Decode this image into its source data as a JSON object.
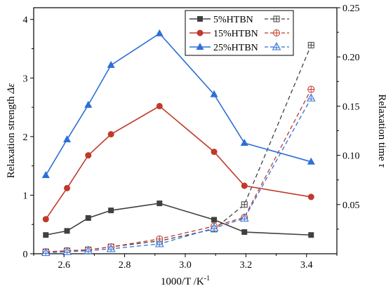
{
  "chart_data": {
    "type": "line",
    "xlabel": "1000/T /K",
    "xlabel_sup": "-1",
    "ylabel_left": "Relaxation strength",
    "ylabel_left_symbol": "Δε",
    "ylabel_right": "Relaxation time",
    "ylabel_right_symbol": "τ",
    "xlim": [
      2.5,
      3.5
    ],
    "ylim_left": [
      0,
      4.2
    ],
    "ylim_right": [
      0,
      0.25
    ],
    "x_ticks": [
      "2.6",
      "2.8",
      "3.0",
      "3.2",
      "3.4"
    ],
    "y_left_ticks": [
      "0",
      "1",
      "2",
      "3",
      "4"
    ],
    "y_right_ticks": [
      "0.05",
      "0.10",
      "0.15",
      "0.20",
      "0.25"
    ],
    "x": [
      2.54,
      2.61,
      2.68,
      2.755,
      2.915,
      3.095,
      3.195,
      3.415
    ],
    "legend_position": "top-right",
    "series": [
      {
        "name": "5%HTBN",
        "color": "#404040",
        "marker": "square",
        "strength": [
          0.32,
          0.39,
          0.61,
          0.74,
          0.86,
          0.58,
          0.37,
          0.32
        ],
        "time": [
          0.002,
          0.003,
          0.004,
          0.007,
          0.013,
          0.025,
          0.05,
          0.212
        ]
      },
      {
        "name": "15%HTBN",
        "color": "#c0392b",
        "marker": "circle",
        "strength": [
          0.59,
          1.12,
          1.68,
          2.04,
          2.52,
          1.74,
          1.16,
          0.97
        ],
        "time": [
          0.002,
          0.003,
          0.004,
          0.007,
          0.015,
          0.028,
          0.037,
          0.167
        ]
      },
      {
        "name": "25%HTBN",
        "color": "#2e6fd6",
        "marker": "triangle",
        "strength": [
          1.34,
          1.95,
          2.54,
          3.22,
          3.76,
          2.72,
          1.89,
          1.57
        ],
        "time": [
          0.001,
          0.002,
          0.003,
          0.005,
          0.01,
          0.026,
          0.036,
          0.158
        ]
      }
    ]
  }
}
